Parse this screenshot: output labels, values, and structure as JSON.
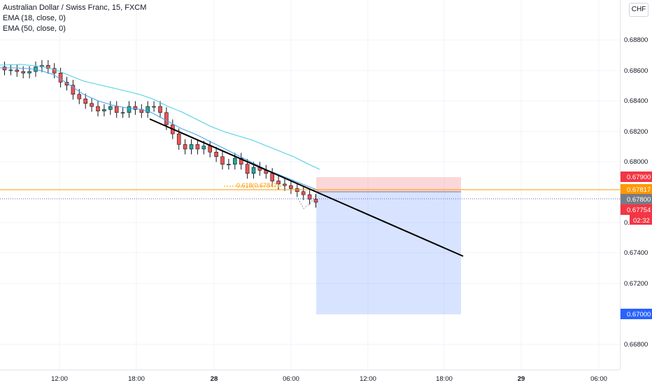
{
  "legend": {
    "title": "Australian Dollar / Swiss Franc, 15, FXCM",
    "indicator1": "EMA (18, close, 0)",
    "indicator2": "EMA (50, close, 0)"
  },
  "currency_button": "CHF",
  "price_axis": {
    "ticks": [
      "0.68800",
      "0.68600",
      "0.68400",
      "0.68200",
      "0.68000",
      "0.67400",
      "0.67200",
      "0.66800"
    ],
    "tick_values": [
      0.688,
      0.686,
      0.684,
      0.682,
      0.68,
      0.674,
      0.672,
      0.668
    ],
    "partial_tick": "0.6760"
  },
  "time_axis": {
    "labels": [
      "12:00",
      "18:00",
      "28",
      "06:00",
      "12:00",
      "18:00",
      "29",
      "06:00"
    ]
  },
  "badges": {
    "stop": {
      "text": "0.67900",
      "color": "#f23645"
    },
    "last": {
      "text": "0.67817",
      "color": "#ff9800"
    },
    "entry": {
      "text": "0.67800",
      "color": "#787b86"
    },
    "current": {
      "text": "0.67754",
      "color": "#f23645"
    },
    "countdown": {
      "text": "02:32",
      "color": "#f23645"
    },
    "target": {
      "text": "0.67000",
      "color": "#2962ff"
    }
  },
  "fib_label": "0.618(0.67847)",
  "colors": {
    "up": "#26a69a",
    "down": "#ef5350",
    "ema18": "#42a5f5",
    "ema50": "#4dd0e1",
    "trendline": "#000000",
    "hline": "#ff9800",
    "stop_zone": "#f23645",
    "target_zone": "#2962ff"
  },
  "chart_data": {
    "type": "candlestick",
    "symbol": "AUDCHF",
    "interval": "15",
    "ylim": [
      0.6665,
      0.6908
    ],
    "x_labels": [
      "12:00",
      "18:00",
      "28",
      "06:00",
      "12:00",
      "18:00",
      "29",
      "06:00"
    ],
    "series": [
      {
        "name": "EMA (18, close, 0)"
      },
      {
        "name": "EMA (50, close, 0)"
      }
    ],
    "levels": {
      "last_price": 0.67817,
      "entry": 0.678,
      "stop": 0.679,
      "target": 0.67,
      "current": 0.67754
    },
    "fib_level": {
      "label": "0.618",
      "value": 0.67847
    },
    "candles_approx_close": [
      0.6862,
      0.6862,
      0.6861,
      0.686,
      0.6861,
      0.6864,
      0.6865,
      0.6863,
      0.686,
      0.6854,
      0.6852,
      0.6846,
      0.6843,
      0.684,
      0.6838,
      0.6835,
      0.6836,
      0.6838,
      0.6834,
      0.6834,
      0.6838,
      0.6836,
      0.6834,
      0.6838,
      0.6838,
      0.6834,
      0.6826,
      0.682,
      0.6813,
      0.681,
      0.6813,
      0.681,
      0.6812,
      0.6808,
      0.6805,
      0.68,
      0.68,
      0.6804,
      0.68,
      0.6794,
      0.6798,
      0.6796,
      0.6794,
      0.6789,
      0.6787,
      0.6786,
      0.6784,
      0.6782,
      0.678,
      0.6777,
      0.6775
    ]
  }
}
